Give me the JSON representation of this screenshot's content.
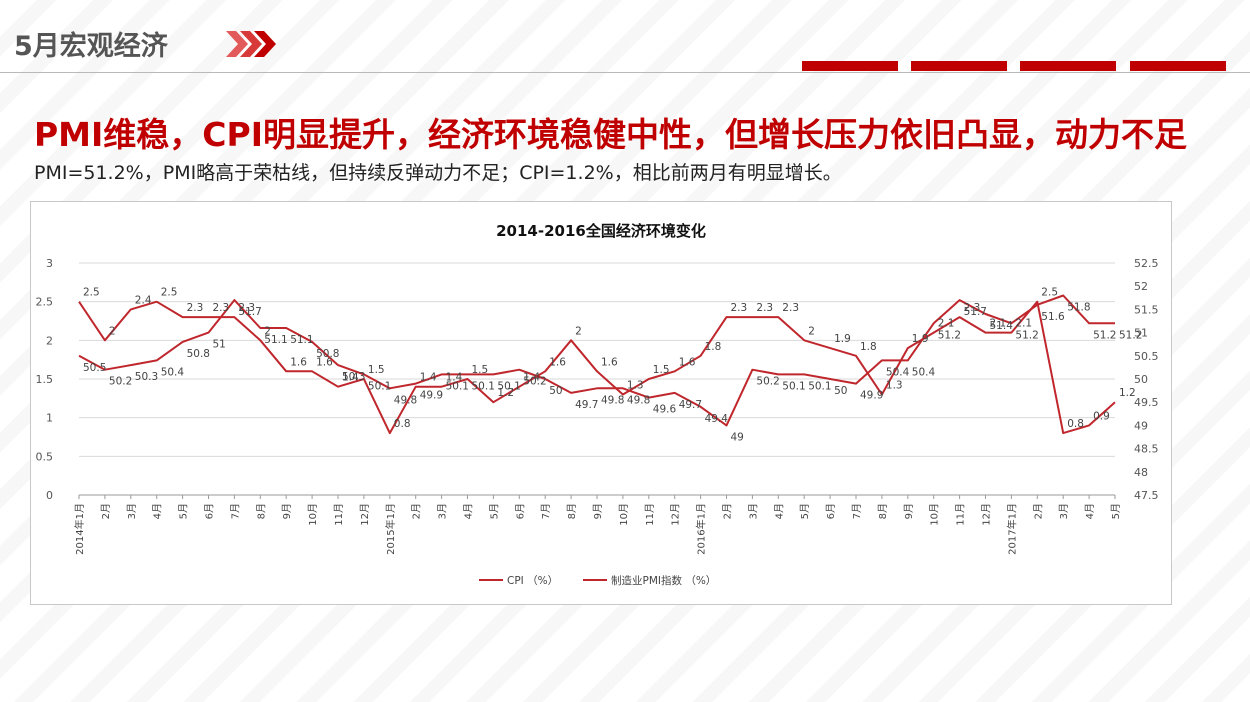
{
  "header": {
    "title": "5月宏观经济",
    "accent_color": "#c00000"
  },
  "headline": "PMI维稳，CPI明显提升，经济环境稳健中性，但增长压力依旧凸显，动力不足",
  "subline": "PMI=51.2%，PMI略高于荣枯线，但持续反弹动力不足；CPI=1.2%，相比前两月有明显增长。",
  "chart_data": {
    "type": "line",
    "title": "2014-2016全国经济环境变化",
    "categories": [
      "2014年1月",
      "2月",
      "3月",
      "4月",
      "5月",
      "6月",
      "7月",
      "8月",
      "9月",
      "10月",
      "11月",
      "12月",
      "2015年1月",
      "2月",
      "3月",
      "4月",
      "5月",
      "6月",
      "7月",
      "8月",
      "9月",
      "10月",
      "11月",
      "12月",
      "2016年1月",
      "2月",
      "3月",
      "4月",
      "5月",
      "6月",
      "7月",
      "8月",
      "9月",
      "10月",
      "11月",
      "12月",
      "2017年1月",
      "2月",
      "3月",
      "4月",
      "5月"
    ],
    "left_axis": {
      "min": 0,
      "max": 3,
      "step": 0.5,
      "ticks": [
        "0",
        "0.5",
        "1",
        "1.5",
        "2",
        "2.5",
        "3"
      ]
    },
    "right_axis": {
      "min": 47.5,
      "max": 52.5,
      "step": 0.5,
      "ticks": [
        "47.5",
        "48",
        "48.5",
        "49",
        "49.5",
        "50",
        "50.5",
        "51",
        "51.5",
        "52",
        "52.5"
      ]
    },
    "series": [
      {
        "name": "CPI （%）",
        "axis": "left",
        "color": "#c0272d",
        "values": [
          2.5,
          2,
          2.4,
          2.5,
          2.3,
          2.3,
          2.3,
          2,
          1.6,
          1.6,
          1.4,
          1.5,
          0.8,
          1.4,
          1.4,
          1.5,
          1.2,
          1.4,
          1.6,
          2,
          1.6,
          1.3,
          1.5,
          1.6,
          1.8,
          2.3,
          2.3,
          2.3,
          2,
          1.9,
          1.8,
          1.3,
          1.9,
          2.1,
          2.3,
          2.1,
          2.1,
          2.5,
          0.8,
          0.9,
          1.2
        ],
        "labels": [
          "2.5",
          "2",
          "2.4",
          "2.5",
          "2.3",
          "2.3",
          "2.3",
          "2",
          "1.6",
          "1.6",
          "1.4",
          "1.5",
          "0.8",
          "1.4",
          "1.4",
          "1.5",
          "1.2",
          "1.4",
          "1.6",
          "2",
          "1.6",
          "1.3",
          "1.5",
          "1.6",
          "1.8",
          "2.3",
          "2.3",
          "2.3",
          "2",
          "1.9",
          "1.8",
          "1.3",
          "1.9",
          "2.1",
          "2.3",
          "2.1",
          "2.1",
          "2.5",
          "0.8",
          "0.9",
          "1.2"
        ]
      },
      {
        "name": "制造业PMI指数 （%）",
        "axis": "right",
        "color": "#c0272d",
        "values": [
          50.5,
          50.2,
          50.3,
          50.4,
          50.8,
          51,
          51.7,
          51.1,
          51.1,
          50.8,
          50.3,
          50.1,
          49.8,
          49.9,
          50.1,
          50.1,
          50.1,
          50.2,
          50,
          49.7,
          49.8,
          49.8,
          49.6,
          49.7,
          49.4,
          49,
          50.2,
          50.1,
          50.1,
          50,
          49.9,
          50.4,
          50.4,
          51.2,
          51.7,
          51.4,
          51.2,
          51.6,
          51.8,
          51.2,
          51.2
        ],
        "labels": [
          "50.5",
          "50.2",
          "50.3",
          "50.4",
          "50.8",
          "51",
          "51.7",
          "51.1",
          "51.1",
          "50.8",
          "50.3",
          "50.1",
          "49.8",
          "49.9",
          "50.1",
          "50.1",
          "50.1",
          "50.2",
          "50",
          "49.7",
          "49.8",
          "49.8",
          "49.6",
          "49.7",
          "49.4",
          "49",
          "50.2",
          "50.1",
          "50.1",
          "50",
          "49.9",
          "50.4",
          "50.4",
          "51.2",
          "51.7",
          "51.4",
          "51.2",
          "51.6",
          "51.8",
          "51.2",
          "51.2"
        ]
      }
    ],
    "legend_position": "bottom",
    "grid": true
  }
}
